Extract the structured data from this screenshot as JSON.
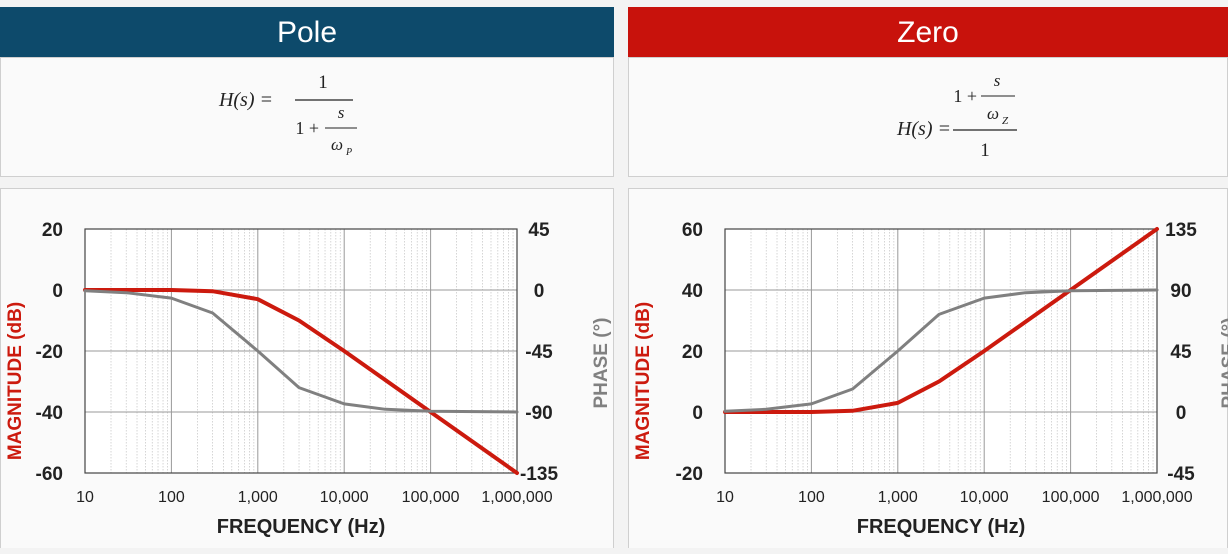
{
  "pole": {
    "header": "Pole",
    "header_color": "#0d4a6b",
    "formula": {
      "lhs": "H(s) =",
      "numerator": "1",
      "denom_prefix": "1 +",
      "inner_num": "s",
      "inner_den": "ω",
      "inner_den_sub": "P"
    }
  },
  "zero": {
    "header": "Zero",
    "header_color": "#c8120c",
    "formula": {
      "lhs": "H(s) =",
      "num_prefix": "1 +",
      "inner_num": "s",
      "inner_den": "ω",
      "inner_den_sub": "Z",
      "denominator": "1"
    }
  },
  "chart_data": [
    {
      "type": "line",
      "title": "Pole",
      "xlabel": "FREQUENCY (Hz)",
      "ylabel": "MAGNITUDE (dB)",
      "y2label": "PHASE (°)",
      "xscale": "log",
      "xlim": [
        10,
        1000000
      ],
      "ylim": [
        -60,
        20
      ],
      "y2lim": [
        -135,
        45
      ],
      "xticks": [
        "10",
        "100",
        "1,000",
        "10,000",
        "100,000",
        "1,000,000"
      ],
      "yticks": [
        "20",
        "0",
        "-20",
        "-40",
        "-60"
      ],
      "y2ticks": [
        "45",
        "0",
        "-45",
        "-90",
        "-135"
      ],
      "series": [
        {
          "name": "Magnitude",
          "axis": "left",
          "color": "#cc1a0e",
          "x": [
            10,
            100,
            300,
            1000,
            3000,
            10000,
            100000,
            1000000
          ],
          "values": [
            0,
            0,
            -0.4,
            -3,
            -10,
            -20,
            -40,
            -60
          ]
        },
        {
          "name": "Phase",
          "axis": "right",
          "color": "#808080",
          "x": [
            10,
            30,
            100,
            300,
            1000,
            3000,
            10000,
            30000,
            100000,
            1000000
          ],
          "values": [
            -0.6,
            -2,
            -6,
            -17,
            -45,
            -72,
            -84,
            -88,
            -89.4,
            -90
          ]
        }
      ]
    },
    {
      "type": "line",
      "title": "Zero",
      "xlabel": "FREQUENCY (Hz)",
      "ylabel": "MAGNITUDE (dB)",
      "y2label": "PHASE (°)",
      "xscale": "log",
      "xlim": [
        10,
        1000000
      ],
      "ylim": [
        -20,
        60
      ],
      "y2lim": [
        -45,
        135
      ],
      "xticks": [
        "10",
        "100",
        "1,000",
        "10,000",
        "100,000",
        "1,000,000"
      ],
      "yticks": [
        "60",
        "40",
        "20",
        "0",
        "-20"
      ],
      "y2ticks": [
        "135",
        "90",
        "45",
        "0",
        "-45"
      ],
      "series": [
        {
          "name": "Magnitude",
          "axis": "left",
          "color": "#cc1a0e",
          "x": [
            10,
            100,
            300,
            1000,
            3000,
            10000,
            100000,
            1000000
          ],
          "values": [
            0,
            0,
            0.4,
            3,
            10,
            20,
            40,
            60
          ]
        },
        {
          "name": "Phase",
          "axis": "right",
          "color": "#808080",
          "x": [
            10,
            30,
            100,
            300,
            1000,
            3000,
            10000,
            30000,
            100000,
            1000000
          ],
          "values": [
            0.6,
            2,
            6,
            17,
            45,
            72,
            84,
            88,
            89.4,
            90
          ]
        }
      ]
    }
  ]
}
